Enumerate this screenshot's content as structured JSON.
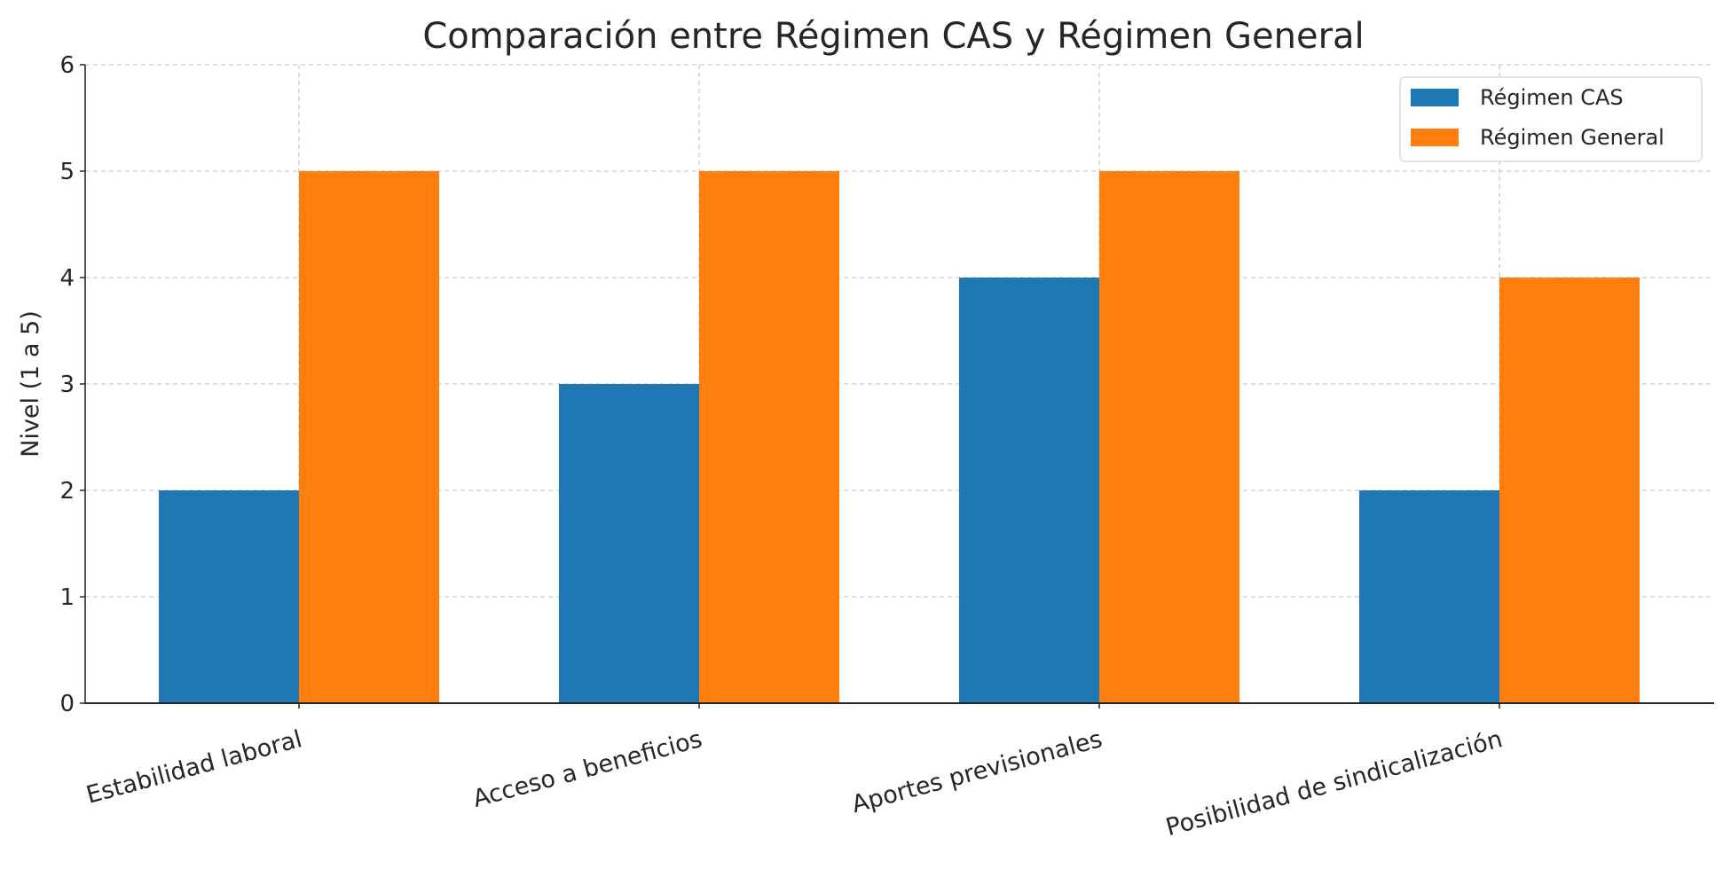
{
  "chart_data": {
    "type": "bar",
    "title": "Comparación entre Régimen CAS y Régimen General",
    "xlabel": "",
    "ylabel": "Nivel (1 a 5)",
    "ylim": [
      0,
      6
    ],
    "yticks": [
      "0",
      "1",
      "2",
      "3",
      "4",
      "5",
      "6"
    ],
    "grid": true,
    "legend_position": "top-right",
    "categories": [
      "Estabilidad laboral",
      "Acceso a beneficios",
      "Aportes previsionales",
      "Posibilidad de sindicalización"
    ],
    "series": [
      {
        "name": "Régimen CAS",
        "color": "#1f77b4",
        "values": [
          2,
          3,
          4,
          2
        ]
      },
      {
        "name": "Régimen General",
        "color": "#ff7f0e",
        "values": [
          5,
          5,
          5,
          4
        ]
      }
    ]
  }
}
